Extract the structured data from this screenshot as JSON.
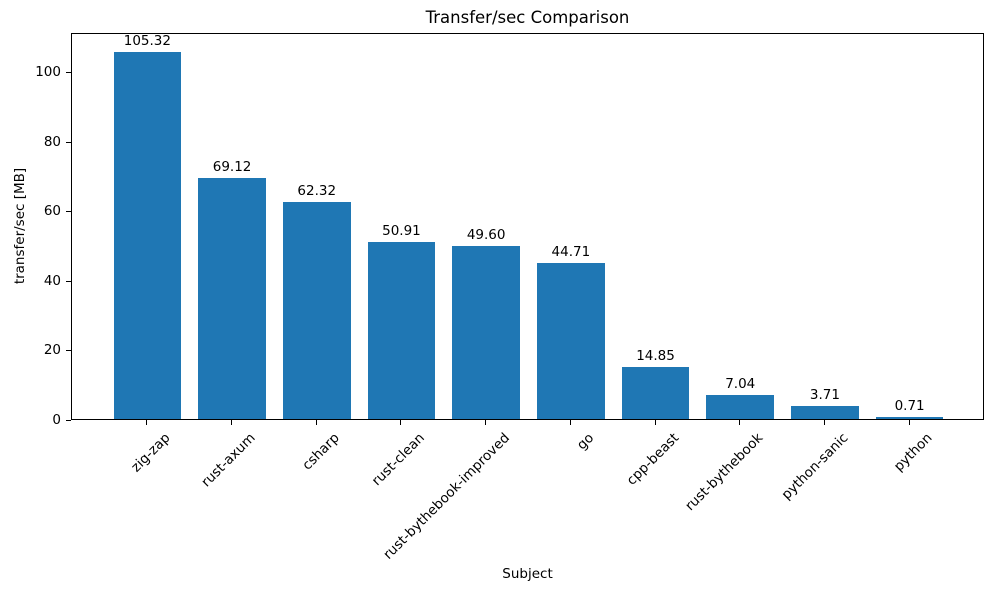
{
  "figure": {
    "background": "#ffffff",
    "text_color": "#000000",
    "spine_color": "#000000"
  },
  "chart_data": {
    "type": "bar",
    "title": "Transfer/sec Comparison",
    "xlabel": "Subject",
    "ylabel": "transfer/sec [MB]",
    "categories": [
      "zig-zap",
      "rust-axum",
      "csharp",
      "rust-clean",
      "rust-bythebook-improved",
      "go",
      "cpp-beast",
      "rust-bythebook",
      "python-sanic",
      "python"
    ],
    "values": [
      105.32,
      69.12,
      62.32,
      50.91,
      49.6,
      44.71,
      14.85,
      7.04,
      3.71,
      0.71
    ],
    "bar_labels": [
      "105.32",
      "69.12",
      "62.32",
      "50.91",
      "49.60",
      "44.71",
      "14.85",
      "7.04",
      "3.71",
      "0.71"
    ],
    "yticks": [
      0,
      20,
      40,
      60,
      80,
      100
    ],
    "ylim": [
      0,
      111.2
    ],
    "bar_color": "#1f77b4",
    "grid": false,
    "legend_position": "none",
    "x_tick_rotation_deg": 45
  }
}
